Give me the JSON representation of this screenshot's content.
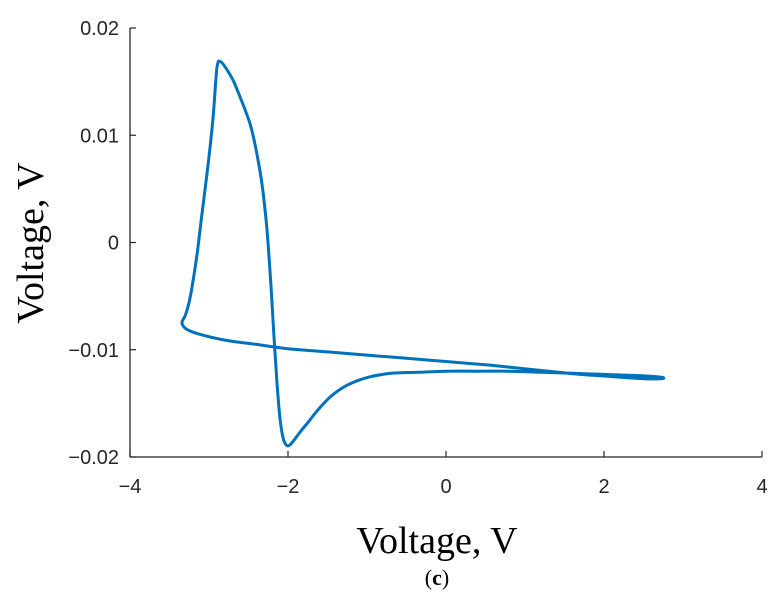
{
  "chart_data": {
    "type": "line",
    "title": "",
    "xlabel": "Voltage, V",
    "ylabel": "Voltage, V",
    "panel_label": "c",
    "xlim": [
      -4,
      4
    ],
    "ylim": [
      -0.02,
      0.02
    ],
    "xticks": [
      -4,
      -2,
      0,
      2,
      4
    ],
    "xtick_labels": [
      "−4",
      "−2",
      "0",
      "2",
      "4"
    ],
    "yticks": [
      -0.02,
      -0.01,
      0,
      0.01,
      0.02
    ],
    "ytick_labels": [
      "−0.02",
      "−0.01",
      "0",
      "0.01",
      "0.02"
    ],
    "grid": false,
    "legend": "none",
    "line_color": "#0072BD",
    "series": [
      {
        "x": [
          -2.88,
          -2.84,
          -2.78,
          -2.7,
          -2.63,
          -2.55,
          -2.47,
          -2.4,
          -2.33,
          -2.27,
          -2.22,
          -2.18,
          -2.14,
          -2.1,
          -2.06,
          -2.02,
          -1.98,
          -1.92,
          -1.85,
          -1.75,
          -1.62,
          -1.45,
          -1.25,
          -1.0,
          -0.7,
          -0.35,
          0.0,
          0.4,
          0.8,
          1.2,
          1.6,
          2.0,
          2.4,
          2.65,
          2.75,
          2.72,
          2.5,
          2.1,
          1.7,
          1.3,
          0.9,
          0.5,
          0.0,
          -0.5,
          -1.0,
          -1.5,
          -2.0,
          -2.4,
          -2.8,
          -3.1,
          -3.28,
          -3.34,
          -3.33,
          -3.3,
          -3.25,
          -3.2,
          -3.15,
          -3.1,
          -3.05,
          -3.0,
          -2.95,
          -2.92,
          -2.9,
          -2.88
        ],
        "y": [
          0.0169,
          0.0168,
          0.0162,
          0.0152,
          0.014,
          0.0125,
          0.0108,
          0.0085,
          0.0055,
          0.0015,
          -0.0035,
          -0.0085,
          -0.013,
          -0.0165,
          -0.0183,
          -0.0189,
          -0.0189,
          -0.0184,
          -0.0177,
          -0.0168,
          -0.0156,
          -0.0143,
          -0.0133,
          -0.0126,
          -0.0122,
          -0.0121,
          -0.012,
          -0.012,
          -0.012,
          -0.0121,
          -0.0122,
          -0.0123,
          -0.0124,
          -0.0125,
          -0.0126,
          -0.0127,
          -0.0127,
          -0.0125,
          -0.0123,
          -0.012,
          -0.0117,
          -0.0114,
          -0.0111,
          -0.0108,
          -0.0105,
          -0.0102,
          -0.0099,
          -0.0095,
          -0.0091,
          -0.0086,
          -0.0081,
          -0.0076,
          -0.0072,
          -0.0068,
          -0.0055,
          -0.0035,
          -0.001,
          0.002,
          0.005,
          0.008,
          0.0115,
          0.0145,
          0.0163,
          0.0169
        ]
      }
    ]
  }
}
